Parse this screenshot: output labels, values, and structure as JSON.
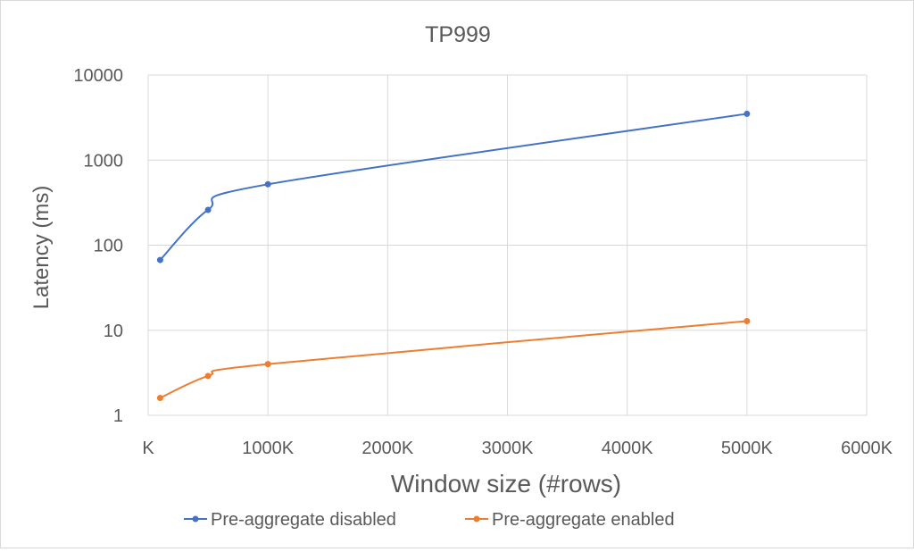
{
  "chart_data": {
    "type": "line",
    "title": "TP999",
    "xlabel": "Window size (#rows)",
    "ylabel": "Latency (ms)",
    "x_ticks": [
      "K",
      "1000K",
      "2000K",
      "3000K",
      "4000K",
      "5000K",
      "6000K"
    ],
    "x_tick_values": [
      0,
      1000,
      2000,
      3000,
      4000,
      5000,
      6000
    ],
    "xlim": [
      0,
      6000
    ],
    "y_scale": "log",
    "ylim": [
      1,
      10000
    ],
    "y_ticks": [
      "1",
      "10",
      "100",
      "1000",
      "10000"
    ],
    "y_tick_values": [
      1,
      10,
      100,
      1000,
      10000
    ],
    "grid": true,
    "legend_position": "bottom",
    "series": [
      {
        "name": "Pre-aggregate disabled",
        "color": "#4472c4",
        "x": [
          100,
          500,
          1000,
          5000
        ],
        "y": [
          67,
          260,
          520,
          3500
        ]
      },
      {
        "name": "Pre-aggregate enabled",
        "color": "#ed7d31",
        "x": [
          100,
          500,
          1000,
          5000
        ],
        "y": [
          1.6,
          2.9,
          4.0,
          12.8
        ]
      }
    ]
  }
}
